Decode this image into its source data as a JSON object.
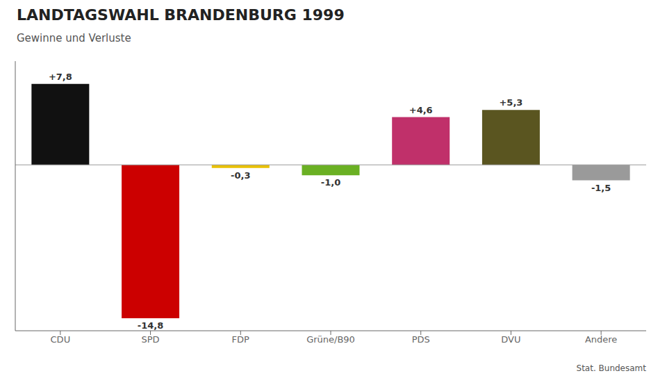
{
  "chart_data": {
    "type": "bar",
    "title": "LANDTAGSWAHL BRANDENBURG 1999",
    "subtitle": "Gewinne und Verluste",
    "categories": [
      "CDU",
      "SPD",
      "FDP",
      "Grüne/B90",
      "PDS",
      "DVU",
      "Andere"
    ],
    "values": [
      7.8,
      -14.8,
      -0.3,
      -1.0,
      4.6,
      5.3,
      -1.5
    ],
    "value_labels": [
      "+7,8",
      "-14,8",
      "-0,3",
      "-1,0",
      "+4,6",
      "+5,3",
      "-1,5"
    ],
    "data_labels": true,
    "colors": [
      "#111111",
      "#cc0000",
      "#e8c000",
      "#6ab023",
      "#c0306a",
      "#5a5520",
      "#9a9a9a"
    ],
    "ylim": [
      -16,
      10
    ],
    "grid": false,
    "tick_labels": "x",
    "annotations": [
      "Stat. Bundesamt"
    ]
  }
}
